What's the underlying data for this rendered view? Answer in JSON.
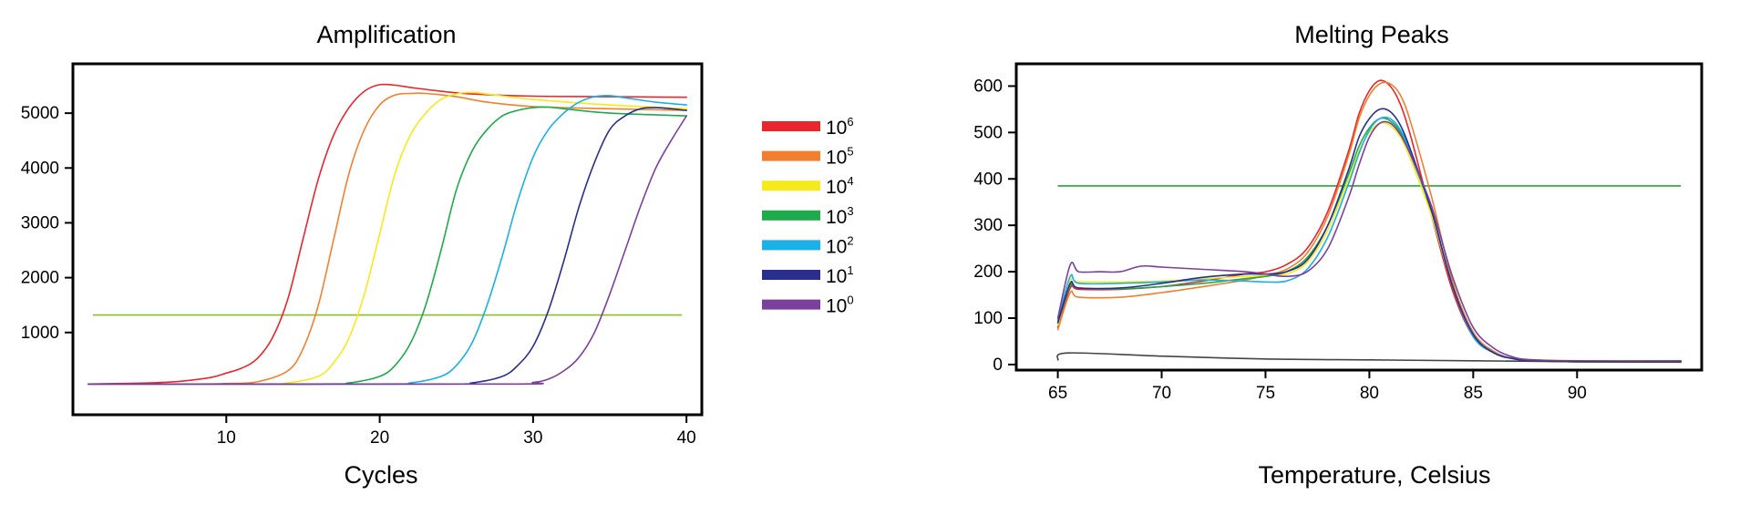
{
  "chart_data": [
    {
      "type": "line",
      "title": "Amplification",
      "xlabel": "Cycles",
      "ylabel": "",
      "xlim": [
        0,
        41
      ],
      "ylim": [
        -500,
        5900
      ],
      "xticks": [
        10,
        20,
        30,
        40
      ],
      "yticks": [
        1000,
        2000,
        3000,
        4000,
        5000
      ],
      "grid": false,
      "legend": "right",
      "threshold": {
        "y": 1320,
        "color": "#8cbf26"
      },
      "series": [
        {
          "name": "10",
          "exponent": "6",
          "color": "#e8262d",
          "x": [
            1,
            3,
            5,
            7,
            9,
            10,
            11,
            12,
            13,
            14,
            15,
            16,
            17,
            18,
            19,
            20,
            21,
            22,
            24,
            26,
            30,
            35,
            40
          ],
          "y": [
            60,
            70,
            80,
            110,
            180,
            260,
            350,
            520,
            900,
            1600,
            2700,
            3800,
            4600,
            5100,
            5400,
            5520,
            5510,
            5470,
            5400,
            5350,
            5310,
            5300,
            5290
          ]
        },
        {
          "name": "10",
          "exponent": "5",
          "color": "#f08030",
          "x": [
            1,
            8,
            10,
            12,
            14,
            15,
            16,
            17,
            18,
            19,
            20,
            21,
            22,
            23,
            25,
            27,
            30,
            35,
            40
          ],
          "y": [
            60,
            60,
            70,
            100,
            300,
            700,
            1500,
            2700,
            3900,
            4700,
            5150,
            5330,
            5360,
            5360,
            5300,
            5200,
            5120,
            5080,
            5050
          ]
        },
        {
          "name": "10",
          "exponent": "4",
          "color": "#f7ea1c",
          "x": [
            1,
            12,
            14,
            16,
            17,
            18,
            19,
            20,
            21,
            22,
            23,
            24,
            25,
            26,
            27,
            30,
            35,
            40
          ],
          "y": [
            60,
            60,
            80,
            200,
            450,
            900,
            1700,
            2800,
            3900,
            4600,
            5000,
            5250,
            5350,
            5380,
            5350,
            5250,
            5150,
            5080
          ]
        },
        {
          "name": "10",
          "exponent": "3",
          "color": "#1faa4b",
          "x": [
            1,
            16,
            18,
            20,
            21,
            22,
            23,
            24,
            25,
            26,
            27,
            28,
            29,
            30,
            31,
            32,
            35,
            40
          ],
          "y": [
            60,
            60,
            80,
            200,
            400,
            800,
            1500,
            2500,
            3600,
            4300,
            4700,
            4950,
            5050,
            5100,
            5110,
            5080,
            5000,
            4950
          ]
        },
        {
          "name": "10",
          "exponent": "2",
          "color": "#1ab0e8",
          "x": [
            1,
            20,
            22,
            24,
            25,
            26,
            27,
            28,
            29,
            30,
            31,
            32,
            33,
            34,
            35,
            36,
            38,
            40
          ],
          "y": [
            60,
            60,
            80,
            200,
            400,
            800,
            1500,
            2400,
            3400,
            4200,
            4700,
            5000,
            5200,
            5300,
            5320,
            5280,
            5200,
            5150
          ]
        },
        {
          "name": "10",
          "exponent": "1",
          "color": "#2a2f8e",
          "x": [
            1,
            24,
            26,
            28,
            29,
            30,
            31,
            32,
            33,
            34,
            35,
            36,
            37,
            38,
            39,
            40
          ],
          "y": [
            60,
            60,
            80,
            200,
            400,
            750,
            1400,
            2300,
            3300,
            4100,
            4700,
            4950,
            5080,
            5100,
            5080,
            5050
          ]
        },
        {
          "name": "10",
          "exponent": "0",
          "color": "#7b3f9d",
          "x": [
            1,
            28,
            30,
            31,
            32,
            33,
            34,
            35,
            36,
            37,
            38,
            39,
            40
          ],
          "y": [
            60,
            60,
            90,
            150,
            300,
            550,
            1000,
            1700,
            2500,
            3300,
            4000,
            4500,
            4950
          ]
        }
      ]
    },
    {
      "type": "line",
      "title": "Melting Peaks",
      "xlabel": "Temperature, Celsius",
      "ylabel": "",
      "xlim": [
        63,
        96
      ],
      "ylim": [
        -12,
        648
      ],
      "xticks": [
        65,
        70,
        75,
        80,
        85,
        90
      ],
      "yticks": [
        0,
        100,
        200,
        300,
        400,
        500,
        600
      ],
      "grid": false,
      "legend": "none",
      "threshold": {
        "y": 385,
        "x0": 65,
        "x1": 95,
        "color": "#22a535"
      },
      "series": [
        {
          "color": "#e8262d",
          "x": [
            65,
            65.6,
            66,
            68,
            70,
            72,
            74,
            75,
            76,
            77,
            78,
            79,
            79.5,
            80,
            80.5,
            81,
            81.5,
            82,
            83,
            84,
            85,
            86,
            87,
            88,
            90,
            95
          ],
          "y": [
            80,
            165,
            162,
            162,
            168,
            180,
            195,
            200,
            215,
            250,
            330,
            460,
            540,
            590,
            612,
            600,
            560,
            490,
            320,
            160,
            60,
            25,
            12,
            8,
            6,
            6
          ]
        },
        {
          "color": "#f08030",
          "x": [
            65,
            65.6,
            66,
            68,
            70,
            72,
            74,
            75,
            76,
            77,
            78,
            79,
            79.5,
            80,
            80.5,
            81,
            81.5,
            82,
            83,
            84,
            85,
            86,
            87,
            88,
            90,
            95
          ],
          "y": [
            75,
            155,
            145,
            145,
            155,
            168,
            182,
            192,
            205,
            240,
            320,
            450,
            530,
            580,
            605,
            605,
            580,
            520,
            360,
            180,
            70,
            28,
            12,
            8,
            6,
            6
          ]
        },
        {
          "color": "#f7ea1c",
          "x": [
            65,
            65.6,
            66,
            68,
            70,
            72,
            74,
            75,
            76,
            77,
            78,
            79,
            79.5,
            80,
            80.5,
            81,
            81.5,
            82,
            83,
            84,
            85,
            86,
            87,
            88,
            90,
            95
          ],
          "y": [
            85,
            180,
            178,
            178,
            180,
            185,
            190,
            192,
            195,
            220,
            290,
            400,
            460,
            500,
            520,
            515,
            490,
            440,
            320,
            170,
            65,
            25,
            12,
            8,
            6,
            6
          ]
        },
        {
          "color": "#1faa4b",
          "x": [
            65,
            65.6,
            66,
            68,
            70,
            72,
            74,
            75,
            76,
            77,
            78,
            79,
            79.5,
            80,
            80.5,
            81,
            81.5,
            82,
            83,
            84,
            85,
            86,
            87,
            88,
            90,
            95
          ],
          "y": [
            90,
            170,
            165,
            163,
            168,
            175,
            185,
            190,
            200,
            230,
            300,
            410,
            470,
            510,
            530,
            525,
            500,
            450,
            330,
            170,
            65,
            25,
            12,
            8,
            6,
            6
          ]
        },
        {
          "color": "#1ab0e8",
          "x": [
            65,
            65.6,
            66,
            68,
            70,
            72,
            74,
            75,
            76,
            77,
            78,
            79,
            79.5,
            80,
            80.5,
            81,
            81.5,
            82,
            83,
            84,
            85,
            86,
            87,
            88,
            90,
            95
          ],
          "y": [
            95,
            190,
            175,
            175,
            178,
            182,
            180,
            178,
            180,
            205,
            275,
            390,
            455,
            505,
            530,
            530,
            505,
            455,
            330,
            170,
            60,
            25,
            12,
            8,
            6,
            6
          ]
        },
        {
          "color": "#2a2f8e",
          "x": [
            65,
            65.6,
            66,
            68,
            70,
            72,
            74,
            75,
            76,
            77,
            78,
            79,
            79.5,
            80,
            80.5,
            81,
            81.5,
            82,
            83,
            84,
            85,
            86,
            87,
            88,
            90,
            95
          ],
          "y": [
            90,
            175,
            165,
            165,
            175,
            188,
            195,
            195,
            200,
            225,
            300,
            420,
            490,
            530,
            550,
            545,
            515,
            460,
            330,
            170,
            65,
            25,
            12,
            8,
            6,
            6
          ]
        },
        {
          "color": "#7b3f9d",
          "x": [
            65,
            65.6,
            66,
            67,
            68,
            69,
            70,
            72,
            74,
            75,
            76,
            77,
            78,
            79,
            79.5,
            80,
            80.5,
            81,
            81.5,
            82,
            83,
            84,
            85,
            86,
            87,
            88,
            90,
            95
          ],
          "y": [
            100,
            215,
            200,
            200,
            200,
            212,
            210,
            205,
            200,
            195,
            190,
            200,
            250,
            360,
            430,
            490,
            520,
            520,
            495,
            450,
            340,
            190,
            80,
            35,
            15,
            10,
            8,
            8
          ]
        },
        {
          "color": "#444444",
          "x": [
            65,
            65.5,
            70,
            75,
            80,
            85,
            90,
            95
          ],
          "y": [
            10,
            25,
            18,
            12,
            10,
            8,
            6,
            5
          ]
        }
      ]
    }
  ]
}
